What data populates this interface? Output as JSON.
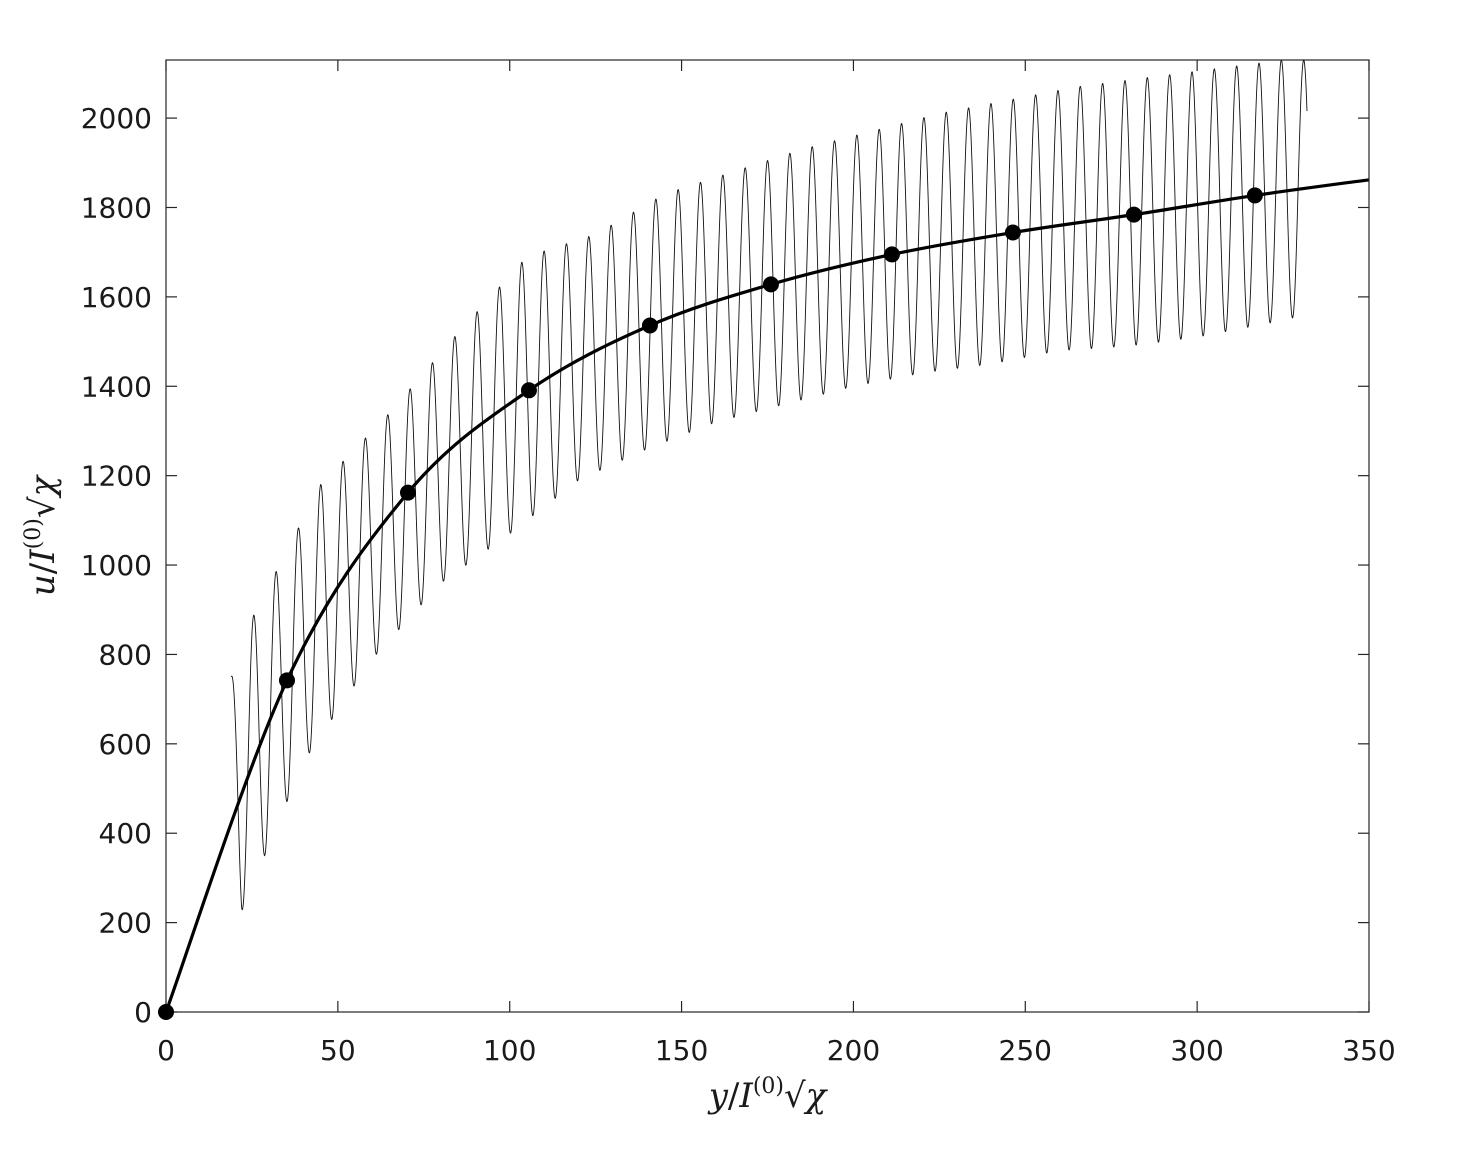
{
  "chart_data": {
    "type": "line",
    "title": "",
    "xlabel": {
      "var": "y",
      "slash": "/",
      "sym": "I",
      "sup": "(0)",
      "root": "√",
      "chi": "χ"
    },
    "ylabel": {
      "var": "u",
      "slash": "/",
      "sym": "I",
      "sup": "(0)",
      "root": "√",
      "chi": "χ"
    },
    "xlim": [
      0,
      350
    ],
    "ylim": [
      0,
      2130
    ],
    "xticks": [
      0,
      50,
      100,
      150,
      200,
      250,
      300,
      350
    ],
    "yticks": [
      0,
      200,
      400,
      600,
      800,
      1000,
      1200,
      1400,
      1600,
      1800,
      2000
    ],
    "grid": false,
    "series": [
      {
        "style": "thin oscillating line",
        "x_range": [
          19,
          332
        ],
        "period": 6.5,
        "envelope_upper": {
          "x": [
            19,
            25,
            45,
            65,
            85,
            105,
            125,
            145,
            165,
            185,
            205,
            225,
            245,
            265,
            285,
            305,
            325,
            332
          ],
          "y": [
            750,
            880,
            1180,
            1340,
            1520,
            1690,
            1740,
            1830,
            1880,
            1930,
            1970,
            2010,
            2040,
            2070,
            2090,
            2110,
            2130,
            2130
          ]
        },
        "envelope_lower": {
          "x": [
            19,
            22,
            40,
            60,
            80,
            100,
            120,
            140,
            160,
            180,
            200,
            220,
            240,
            260,
            280,
            300,
            320,
            332
          ],
          "y": [
            420,
            225,
            560,
            790,
            960,
            1070,
            1190,
            1260,
            1320,
            1360,
            1400,
            1430,
            1450,
            1480,
            1490,
            1510,
            1540,
            1560
          ]
        }
      },
      {
        "style": "thick smooth line with markers",
        "x": [
          0,
          35.2,
          70.4,
          105.6,
          140.8,
          176,
          211.2,
          246.4,
          281.6,
          316.8
        ],
        "y": [
          0,
          742,
          1162,
          1391,
          1536,
          1628,
          1695,
          1744,
          1784,
          1827
        ],
        "extension_x": [
          350
        ],
        "extension_y": [
          1862
        ]
      }
    ]
  }
}
